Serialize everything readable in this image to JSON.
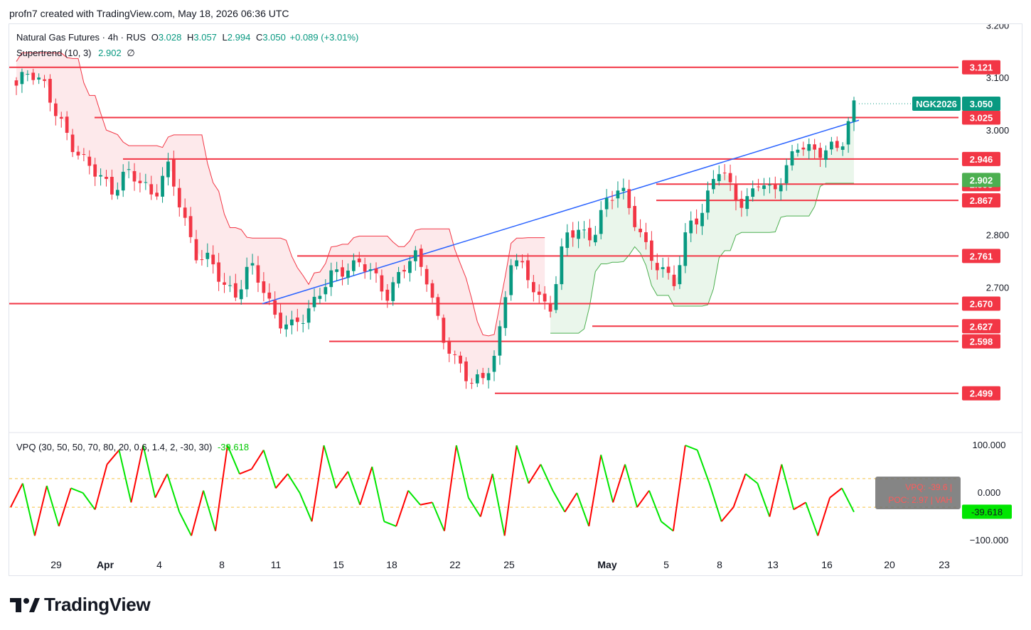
{
  "header": {
    "text": "profn7 created with TradingView.com, May 18, 2026 06:36 UTC"
  },
  "legend": {
    "symbol": "Natural Gas Futures · 4h · RUS",
    "o_label": "O",
    "o": "3.028",
    "h_label": "H",
    "h": "3.057",
    "l_label": "L",
    "l": "2.994",
    "c_label": "C",
    "c": "3.050",
    "change": "+0.089 (+3.01%)",
    "supertrend_label": "Supertrend (10, 3)",
    "supertrend_value": "2.902",
    "supertrend_icon": "∅",
    "vpq_label": "VPQ (30, 50, 50, 70, 80, 20, 0.6, 1.4, 2, -30, 30)",
    "vpq_value": "-39.618"
  },
  "branding": {
    "name": "TradingView"
  },
  "colors": {
    "up": "#089981",
    "down": "#f23645",
    "level_line": "#f23645",
    "trendline": "#2962ff",
    "st_up_fill": "#e8f5e9",
    "st_down_fill": "#fde7e9",
    "st_up_line": "#4caf50",
    "st_down_line": "#f23645",
    "osc_up": "#00e600",
    "osc_down": "#ff0000",
    "osc_ref": "#f5c242"
  },
  "chart_data": [
    {
      "type": "candlestick",
      "symbol": "NGK2026",
      "timeframe": "4h",
      "price_axis_ticks": [
        "3.200",
        "3.100",
        "3.000",
        "2.800",
        "2.700"
      ],
      "ylim": [
        2.42,
        3.21
      ],
      "time_axis_labels": [
        "29",
        "Apr",
        "4",
        "8",
        "11",
        "15",
        "18",
        "22",
        "25",
        "May",
        "5",
        "8",
        "13",
        "16",
        "20",
        "23"
      ],
      "last_price": {
        "label": "NGK2026",
        "value": "3.050"
      },
      "horizontal_levels": [
        "3.121",
        "3.025",
        "2.946",
        "2.898",
        "2.867",
        "2.761",
        "2.670",
        "2.627",
        "2.598",
        "2.499"
      ],
      "supertrend": {
        "label": "Supertrend (10, 3)",
        "value": "2.902"
      },
      "trendline": {
        "from": 2.67,
        "to": 3.02
      },
      "series_anchors": [
        3.08,
        3.12,
        3.09,
        3.02,
        2.98,
        2.94,
        2.91,
        2.89,
        2.92,
        2.9,
        2.88,
        2.93,
        2.85,
        2.77,
        2.75,
        2.71,
        2.69,
        2.74,
        2.7,
        2.64,
        2.62,
        2.65,
        2.69,
        2.72,
        2.74,
        2.75,
        2.72,
        2.69,
        2.73,
        2.76,
        2.72,
        2.6,
        2.56,
        2.53,
        2.52,
        2.58,
        2.76,
        2.73,
        2.68,
        2.67,
        2.8,
        2.81,
        2.8,
        2.86,
        2.9,
        2.83,
        2.76,
        2.74,
        2.71,
        2.82,
        2.85,
        2.93,
        2.89,
        2.86,
        2.9,
        2.88,
        2.93,
        2.97,
        2.96,
        2.97,
        2.96,
        3.05
      ]
    },
    {
      "type": "line",
      "name": "VPQ",
      "ylim": [
        -100,
        100
      ],
      "axis_ticks": [
        "100.000",
        "0.000",
        "−100.000"
      ],
      "reference_levels": [
        30,
        -30
      ],
      "last_value": "-39.618",
      "tooltip": [
        "VPQ: -39.6 |",
        "POC: 2.97 | VAH"
      ],
      "series_anchors": [
        -30,
        20,
        -90,
        15,
        -70,
        10,
        0,
        -35,
        60,
        90,
        -20,
        100,
        -10,
        40,
        -40,
        -90,
        5,
        -80,
        100,
        40,
        50,
        90,
        10,
        40,
        0,
        -60,
        100,
        10,
        45,
        -25,
        55,
        -60,
        -70,
        5,
        -25,
        -20,
        -80,
        100,
        -10,
        -50,
        40,
        -90,
        100,
        20,
        60,
        5,
        -40,
        0,
        -70,
        80,
        -20,
        60,
        -30,
        5,
        -60,
        -80,
        100,
        90,
        20,
        -60,
        -30,
        40,
        20,
        -50,
        60,
        -35,
        -20,
        -90,
        -10,
        10,
        -40
      ]
    }
  ]
}
